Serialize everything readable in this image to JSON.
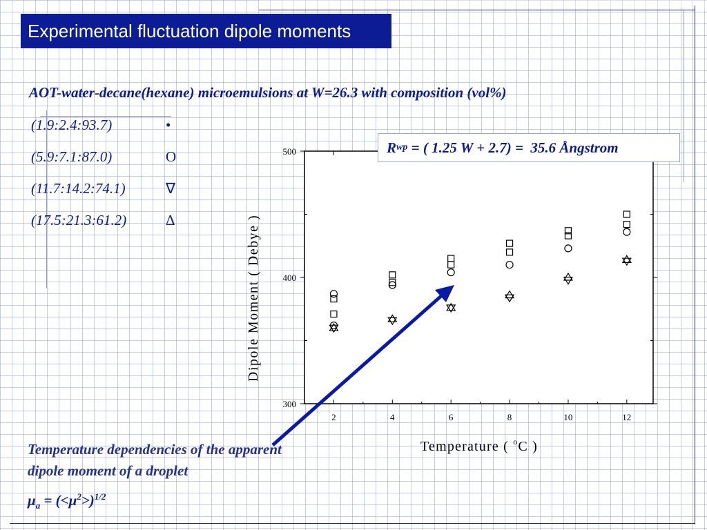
{
  "slide": {
    "title": "Experimental fluctuation dipole moments",
    "heading": "AOT-water-decane(hexane) microemulsions at W=26.3 with composition (vol%)",
    "compositions": [
      {
        "label": "(1.9:2.4:93.7)",
        "symbol": "•"
      },
      {
        "label": "(5.9:7.1:87.0)",
        "symbol": "O"
      },
      {
        "label": "(11.7:14.2:74.1)",
        "symbol": "∇"
      },
      {
        "label": "(17.5:21.3:61.2)",
        "symbol": "Δ"
      }
    ],
    "rwp": {
      "symbol": "R",
      "subscript": "wp",
      "formula": " = ( 1.25 W + 2.7) =  35.6 Ångstrom"
    },
    "caption": "Temperature dependencies of  the apparent dipole moment of a droplet",
    "formula": {
      "mu": "μ",
      "sub_a": "a",
      "eq": " = (<",
      "mu2": "μ",
      "sup2": "2",
      "close": ">)",
      "sup_half": "1/2"
    }
  },
  "colors": {
    "title_bg": "#0b1c94",
    "accent_text": "#0b1c94",
    "arrow": "#0a1aa8",
    "grid": "#96a0dc"
  },
  "chart_data": {
    "type": "scatter",
    "xlabel": "Temperature ( ",
    "xlabel_sup": "o",
    "xlabel_end": "C )",
    "ylabel": "Dipole Moment  ( Debye )",
    "xlim": [
      1,
      12.9
    ],
    "ylim": [
      300,
      500
    ],
    "xticks": [
      2,
      4,
      6,
      8,
      10,
      12
    ],
    "yticks": [
      300,
      400,
      500
    ],
    "series": [
      {
        "marker": "square",
        "x": [
          2,
          2,
          4,
          4,
          6,
          6,
          8,
          8,
          10,
          10,
          12,
          12
        ],
        "y": [
          383,
          371,
          402,
          396,
          415,
          410,
          427,
          420,
          437,
          433,
          450,
          442
        ]
      },
      {
        "marker": "circle",
        "x": [
          2,
          2,
          4,
          6,
          8,
          10,
          12
        ],
        "y": [
          387,
          362,
          394,
          404,
          410,
          423,
          436
        ]
      },
      {
        "marker": "triangle-down",
        "x": [
          2,
          4,
          6,
          8,
          10,
          12
        ],
        "y": [
          360,
          366,
          376,
          384,
          398,
          413
        ]
      },
      {
        "marker": "triangle-up",
        "x": [
          2,
          4,
          6,
          8,
          10,
          12
        ],
        "y": [
          360,
          367,
          376,
          386,
          400,
          414
        ]
      }
    ]
  }
}
